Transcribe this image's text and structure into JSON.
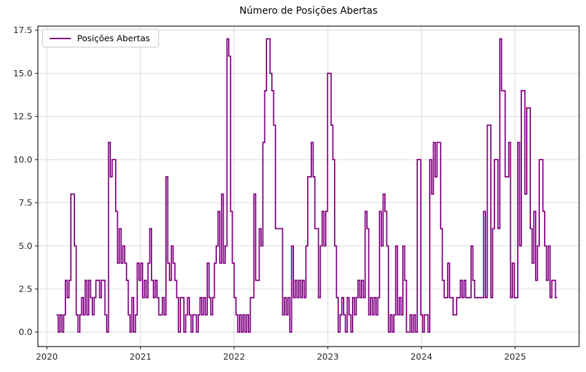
{
  "chart_data": {
    "type": "line",
    "style": "steps-post",
    "title": "Número de Posições Abertas",
    "legend": {
      "label": "Posições Abertas",
      "position": "upper-left"
    },
    "line_color": "#800080",
    "background_color": "#ffffff",
    "grid": true,
    "grid_color": "#d4d4d4",
    "spine_color": "#262626",
    "tick_label_color": "#262626",
    "x_axis": {
      "tick_labels": [
        "2020",
        "2021",
        "2022",
        "2023",
        "2024",
        "2025"
      ],
      "tick_values": [
        2020,
        2021,
        2022,
        2023,
        2024,
        2025
      ],
      "range": [
        2019.904,
        2025.687
      ]
    },
    "y_axis": {
      "tick_labels": [
        "0.0",
        "2.5",
        "5.0",
        "7.5",
        "10.0",
        "12.5",
        "15.0",
        "17.5"
      ],
      "tick_values": [
        0,
        2.5,
        5,
        7.5,
        10,
        12.5,
        15,
        17.5
      ],
      "range": [
        -0.85,
        17.74
      ]
    },
    "series": [
      {
        "name": "Posições Abertas",
        "start_year": 2020.103,
        "step_years": 0.019165,
        "values": [
          1,
          0,
          1,
          0,
          1,
          3,
          2,
          3,
          8,
          8,
          5,
          1,
          0,
          1,
          2,
          1,
          3,
          1,
          3,
          2,
          1,
          2,
          3,
          3,
          2,
          3,
          3,
          1,
          0,
          11,
          9,
          10,
          10,
          7,
          4,
          6,
          4,
          5,
          4,
          3,
          1,
          0,
          2,
          0,
          1,
          4,
          3,
          4,
          2,
          3,
          2,
          4,
          6,
          3,
          2,
          3,
          2,
          1,
          1,
          2,
          1,
          9,
          4,
          3,
          5,
          4,
          3,
          2,
          0,
          2,
          2,
          0,
          1,
          2,
          1,
          0,
          1,
          1,
          0,
          1,
          2,
          1,
          2,
          1,
          4,
          2,
          1,
          2,
          4,
          5,
          7,
          4,
          8,
          4,
          5,
          17,
          16,
          7,
          4,
          2,
          1,
          0,
          1,
          0,
          1,
          0,
          1,
          0,
          2,
          2,
          8,
          3,
          3,
          6,
          5,
          11,
          14,
          17,
          17,
          15,
          14,
          12,
          6,
          6,
          6,
          6,
          1,
          2,
          1,
          2,
          0,
          5,
          2,
          3,
          2,
          3,
          2,
          3,
          2,
          5,
          9,
          9,
          11,
          9,
          6,
          6,
          2,
          5,
          7,
          5,
          7,
          15,
          15,
          12,
          10,
          5,
          2,
          0,
          1,
          2,
          1,
          0,
          2,
          1,
          0,
          2,
          1,
          2,
          3,
          2,
          3,
          2,
          7,
          6,
          1,
          2,
          1,
          2,
          1,
          2,
          7,
          5,
          8,
          7,
          5,
          0,
          1,
          0,
          1,
          5,
          1,
          2,
          1,
          5,
          3,
          0,
          0,
          1,
          0,
          1,
          0,
          10,
          10,
          1,
          0,
          1,
          1,
          0,
          10,
          8,
          11,
          9,
          11,
          11,
          6,
          3,
          2,
          2,
          4,
          2,
          2,
          1,
          1,
          2,
          2,
          3,
          2,
          3,
          2,
          2,
          2,
          5,
          3,
          2,
          2,
          2,
          2,
          2,
          7,
          2,
          12,
          12,
          2,
          6,
          10,
          10,
          6,
          17,
          14,
          14,
          9,
          9,
          11,
          2,
          4,
          2,
          2,
          11,
          5,
          14,
          14,
          8,
          13,
          13,
          6,
          4,
          7,
          3,
          5,
          10,
          10,
          7,
          5,
          3,
          5,
          2,
          3,
          3,
          2
        ]
      }
    ]
  }
}
